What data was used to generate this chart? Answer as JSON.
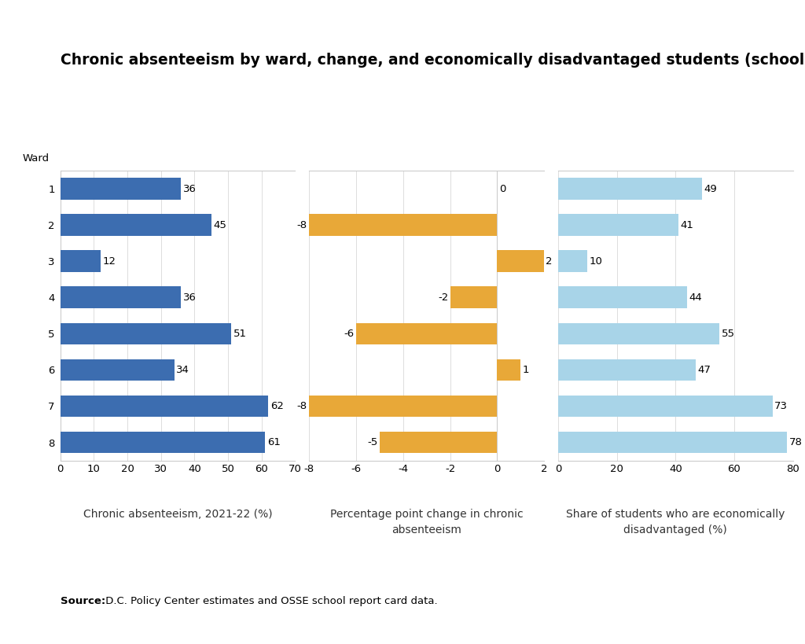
{
  "title": "Chronic absenteeism by ward, change, and economically disadvantaged students (school-level average)",
  "wards": [
    1,
    2,
    3,
    4,
    5,
    6,
    7,
    8
  ],
  "absenteeism": [
    36,
    45,
    12,
    36,
    51,
    34,
    62,
    61
  ],
  "change": [
    0,
    -8,
    2,
    -2,
    -6,
    1,
    -8,
    -5
  ],
  "econ_disadvantaged": [
    49,
    41,
    10,
    44,
    55,
    47,
    73,
    78
  ],
  "bar_color_blue": "#3C6DB0",
  "bar_color_orange": "#E8A838",
  "bar_color_light_blue": "#A8D4E8",
  "xlabel1": "Chronic absenteeism, 2021-22 (%)",
  "xlabel2": "Percentage point change in chronic\nabsenteeism",
  "xlabel3": "Share of students who are economically\ndisadvantaged (%)",
  "ward_label": "Ward",
  "xlim1": [
    0,
    70
  ],
  "xlim2": [
    -8,
    2
  ],
  "xlim3": [
    0,
    80
  ],
  "xticks1": [
    0,
    10,
    20,
    30,
    40,
    50,
    60,
    70
  ],
  "xticks2": [
    -8,
    -6,
    -4,
    -2,
    0,
    2
  ],
  "xticks3": [
    0,
    20,
    40,
    60,
    80
  ],
  "source_bold": "Source:",
  "source_normal": " D.C. Policy Center estimates and OSSE school report card data.",
  "background_color": "#FFFFFF",
  "border_color": "#CCCCCC",
  "grid_color": "#DDDDDD",
  "title_fontsize": 13.5,
  "label_fontsize": 10,
  "tick_fontsize": 9.5,
  "bar_value_fontsize": 9.5,
  "source_fontsize": 9.5
}
